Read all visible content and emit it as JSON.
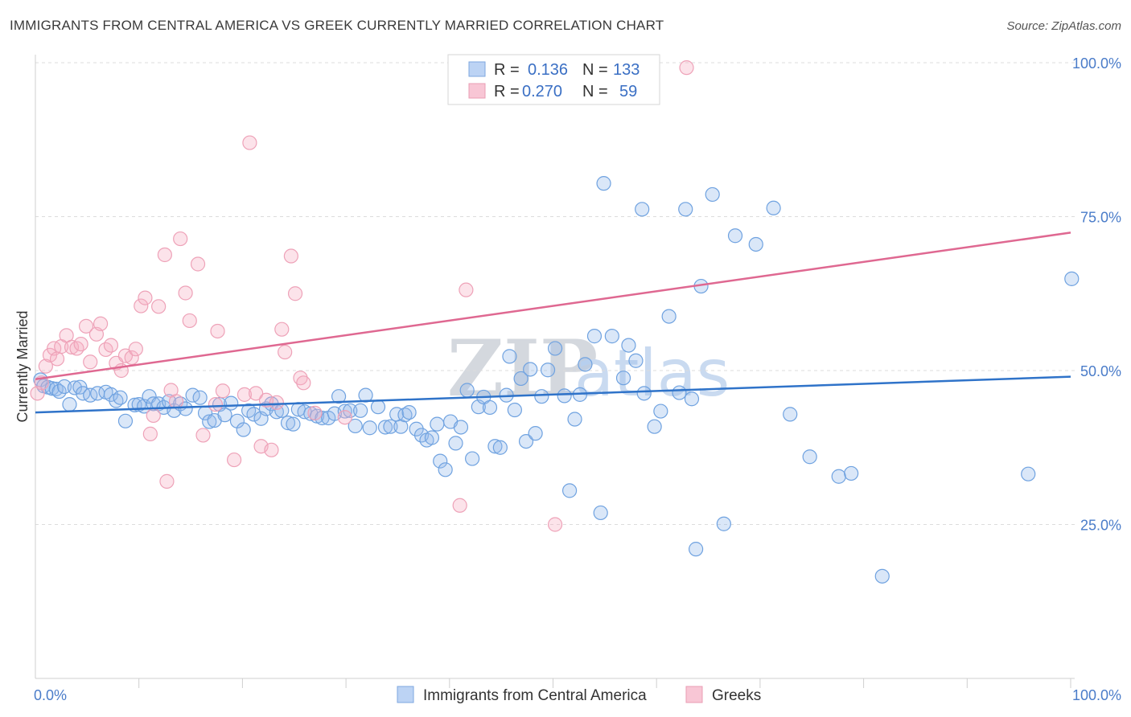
{
  "chart_data": {
    "type": "scatter",
    "title": "IMMIGRANTS FROM CENTRAL AMERICA VS GREEK CURRENTLY MARRIED CORRELATION CHART",
    "source": "Source: ZipAtlas.com",
    "ylabel": "Currently Married",
    "xlim": [
      0,
      100
    ],
    "ylim": [
      0,
      100
    ],
    "x_tick_labels": [
      "0.0%",
      "100.0%"
    ],
    "y_ticks": [
      25,
      50,
      75,
      100
    ],
    "y_tick_labels": [
      "25.0%",
      "50.0%",
      "75.0%",
      "100.0%"
    ],
    "watermark": {
      "zip": "ZIP",
      "atlas": "atlas"
    },
    "legend": {
      "r_label": "R =",
      "n_label": "N =",
      "entries": [
        {
          "r": "0.136",
          "n": "133"
        },
        {
          "r": "0.270",
          "n": "59"
        }
      ]
    },
    "series": [
      {
        "name": "Immigrants from Central America",
        "color": "#6fa2e0",
        "fill": "rgba(150,185,235,0.35)",
        "trend_color": "#2f73c9",
        "trend": [
          [
            0,
            43.2
          ],
          [
            100,
            49.0
          ]
        ],
        "points": [
          [
            0.5,
            48.5
          ],
          [
            0.8,
            47.5
          ],
          [
            1.2,
            47.3
          ],
          [
            1.6,
            47.1
          ],
          [
            2.0,
            47.0
          ],
          [
            2.3,
            46.6
          ],
          [
            2.8,
            47.4
          ],
          [
            3.3,
            44.5
          ],
          [
            3.8,
            47.2
          ],
          [
            4.3,
            47.3
          ],
          [
            4.6,
            46.3
          ],
          [
            5.3,
            46.0
          ],
          [
            6.0,
            46.3
          ],
          [
            6.8,
            46.5
          ],
          [
            7.3,
            46.1
          ],
          [
            7.8,
            45.1
          ],
          [
            8.2,
            45.6
          ],
          [
            8.7,
            41.8
          ],
          [
            9.6,
            44.4
          ],
          [
            10.0,
            44.5
          ],
          [
            10.5,
            44.2
          ],
          [
            11.0,
            45.8
          ],
          [
            11.4,
            44.6
          ],
          [
            11.9,
            44.6
          ],
          [
            12.4,
            44.0
          ],
          [
            12.9,
            45.0
          ],
          [
            13.4,
            43.5
          ],
          [
            14.0,
            44.6
          ],
          [
            14.5,
            43.8
          ],
          [
            15.2,
            46.0
          ],
          [
            15.9,
            45.6
          ],
          [
            16.4,
            43.1
          ],
          [
            16.8,
            41.7
          ],
          [
            17.3,
            41.9
          ],
          [
            17.8,
            44.5
          ],
          [
            18.3,
            42.8
          ],
          [
            18.9,
            44.7
          ],
          [
            19.5,
            41.8
          ],
          [
            20.1,
            40.4
          ],
          [
            20.6,
            43.5
          ],
          [
            21.1,
            42.9
          ],
          [
            21.8,
            42.2
          ],
          [
            22.3,
            43.8
          ],
          [
            22.8,
            44.6
          ],
          [
            23.3,
            43.3
          ],
          [
            23.8,
            43.5
          ],
          [
            24.4,
            41.5
          ],
          [
            24.9,
            41.3
          ],
          [
            25.4,
            43.7
          ],
          [
            26.0,
            43.3
          ],
          [
            26.6,
            43.0
          ],
          [
            27.2,
            42.6
          ],
          [
            27.7,
            42.3
          ],
          [
            28.3,
            42.3
          ],
          [
            28.9,
            43.0
          ],
          [
            29.3,
            45.8
          ],
          [
            29.9,
            43.4
          ],
          [
            30.4,
            43.5
          ],
          [
            30.9,
            41.0
          ],
          [
            31.4,
            43.5
          ],
          [
            31.9,
            46.0
          ],
          [
            32.3,
            40.7
          ],
          [
            33.1,
            44.1
          ],
          [
            33.8,
            40.8
          ],
          [
            34.3,
            40.9
          ],
          [
            34.9,
            42.9
          ],
          [
            35.3,
            40.9
          ],
          [
            35.7,
            42.8
          ],
          [
            36.1,
            43.2
          ],
          [
            36.8,
            40.5
          ],
          [
            37.3,
            39.5
          ],
          [
            37.8,
            38.7
          ],
          [
            38.3,
            39.1
          ],
          [
            38.8,
            41.3
          ],
          [
            39.1,
            35.3
          ],
          [
            39.6,
            33.9
          ],
          [
            40.1,
            41.7
          ],
          [
            40.6,
            38.2
          ],
          [
            41.1,
            40.8
          ],
          [
            41.7,
            46.8
          ],
          [
            42.2,
            35.7
          ],
          [
            42.8,
            44.1
          ],
          [
            43.3,
            45.7
          ],
          [
            43.9,
            44.0
          ],
          [
            44.4,
            37.7
          ],
          [
            44.9,
            37.5
          ],
          [
            45.5,
            46.0
          ],
          [
            45.8,
            52.3
          ],
          [
            46.3,
            43.6
          ],
          [
            46.9,
            48.7
          ],
          [
            47.4,
            38.5
          ],
          [
            47.8,
            50.2
          ],
          [
            48.3,
            39.8
          ],
          [
            48.9,
            45.8
          ],
          [
            49.5,
            50.1
          ],
          [
            50.2,
            53.6
          ],
          [
            51.1,
            45.9
          ],
          [
            51.6,
            30.5
          ],
          [
            52.1,
            42.1
          ],
          [
            52.6,
            46.1
          ],
          [
            53.1,
            51.0
          ],
          [
            54.0,
            55.6
          ],
          [
            54.6,
            26.9
          ],
          [
            54.9,
            80.4
          ],
          [
            55.7,
            55.6
          ],
          [
            56.8,
            48.8
          ],
          [
            57.3,
            54.1
          ],
          [
            58.0,
            51.6
          ],
          [
            58.6,
            76.2
          ],
          [
            58.8,
            46.3
          ],
          [
            59.8,
            40.9
          ],
          [
            60.4,
            43.4
          ],
          [
            61.2,
            58.8
          ],
          [
            62.2,
            46.4
          ],
          [
            62.8,
            76.2
          ],
          [
            63.4,
            45.4
          ],
          [
            63.8,
            21.0
          ],
          [
            64.3,
            63.7
          ],
          [
            65.4,
            78.6
          ],
          [
            66.5,
            25.1
          ],
          [
            67.6,
            71.9
          ],
          [
            69.6,
            70.5
          ],
          [
            71.3,
            76.4
          ],
          [
            72.9,
            42.9
          ],
          [
            74.8,
            36.0
          ],
          [
            77.6,
            32.8
          ],
          [
            78.8,
            33.3
          ],
          [
            81.8,
            16.6
          ],
          [
            95.9,
            33.2
          ],
          [
            100.1,
            64.9
          ]
        ]
      },
      {
        "name": "Greeks",
        "color": "#eea2b8",
        "fill": "rgba(245,175,195,0.35)",
        "trend_color": "#df6891",
        "trend": [
          [
            0,
            48.6
          ],
          [
            100,
            72.4
          ]
        ],
        "points": [
          [
            0.2,
            46.3
          ],
          [
            0.6,
            48.0
          ],
          [
            1.0,
            50.7
          ],
          [
            1.4,
            52.5
          ],
          [
            1.8,
            53.6
          ],
          [
            2.1,
            51.9
          ],
          [
            2.5,
            53.9
          ],
          [
            3.0,
            55.7
          ],
          [
            3.5,
            53.8
          ],
          [
            4.0,
            53.6
          ],
          [
            4.4,
            54.3
          ],
          [
            4.9,
            57.2
          ],
          [
            5.3,
            51.4
          ],
          [
            5.9,
            55.9
          ],
          [
            6.3,
            57.6
          ],
          [
            6.8,
            53.4
          ],
          [
            7.3,
            54.1
          ],
          [
            7.8,
            51.2
          ],
          [
            8.3,
            50.0
          ],
          [
            8.7,
            52.4
          ],
          [
            9.3,
            52.1
          ],
          [
            9.7,
            53.5
          ],
          [
            10.2,
            60.5
          ],
          [
            10.6,
            61.8
          ],
          [
            11.1,
            39.7
          ],
          [
            11.4,
            42.7
          ],
          [
            11.9,
            60.4
          ],
          [
            12.5,
            68.8
          ],
          [
            12.7,
            32.0
          ],
          [
            13.1,
            46.8
          ],
          [
            13.6,
            45.0
          ],
          [
            14.0,
            71.4
          ],
          [
            14.5,
            62.6
          ],
          [
            14.9,
            58.1
          ],
          [
            15.7,
            67.3
          ],
          [
            16.2,
            39.5
          ],
          [
            17.4,
            44.5
          ],
          [
            17.6,
            56.4
          ],
          [
            18.1,
            46.7
          ],
          [
            19.2,
            35.5
          ],
          [
            20.2,
            46.1
          ],
          [
            20.7,
            87.0
          ],
          [
            21.3,
            46.3
          ],
          [
            21.8,
            37.7
          ],
          [
            22.3,
            45.2
          ],
          [
            22.8,
            37.1
          ],
          [
            23.3,
            44.8
          ],
          [
            23.8,
            56.7
          ],
          [
            24.1,
            53.0
          ],
          [
            24.7,
            68.6
          ],
          [
            25.1,
            62.5
          ],
          [
            25.6,
            48.8
          ],
          [
            25.9,
            48.0
          ],
          [
            27.0,
            43.1
          ],
          [
            29.9,
            42.4
          ],
          [
            41.0,
            28.1
          ],
          [
            41.6,
            63.1
          ],
          [
            50.2,
            25.0
          ],
          [
            62.9,
            99.2
          ]
        ]
      }
    ]
  },
  "bottom_legend": [
    {
      "label": "Immigrants from Central America"
    },
    {
      "label": "Greeks"
    }
  ]
}
